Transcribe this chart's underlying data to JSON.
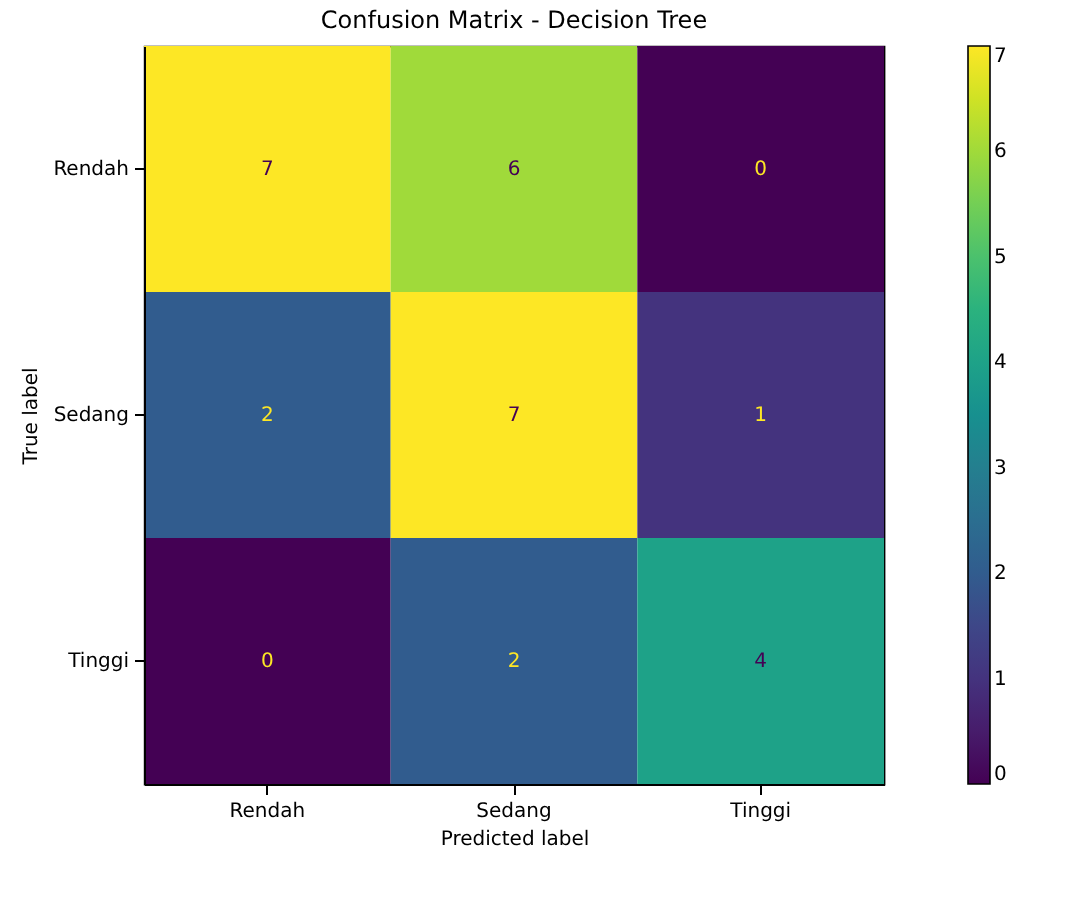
{
  "chart_data": {
    "type": "heatmap",
    "title": "Confusion Matrix - Decision Tree",
    "xlabel": "Predicted label",
    "ylabel": "True label",
    "categories": [
      "Rendah",
      "Sedang",
      "Tinggi"
    ],
    "y_categories": [
      "Rendah",
      "Sedang",
      "Tinggi"
    ],
    "cells": [
      [
        7,
        6,
        0
      ],
      [
        2,
        7,
        1
      ],
      [
        0,
        2,
        4
      ]
    ],
    "clim": [
      0,
      7
    ],
    "cticks": [
      0,
      1,
      2,
      3,
      4,
      5,
      6,
      7
    ],
    "data_labels": true
  }
}
